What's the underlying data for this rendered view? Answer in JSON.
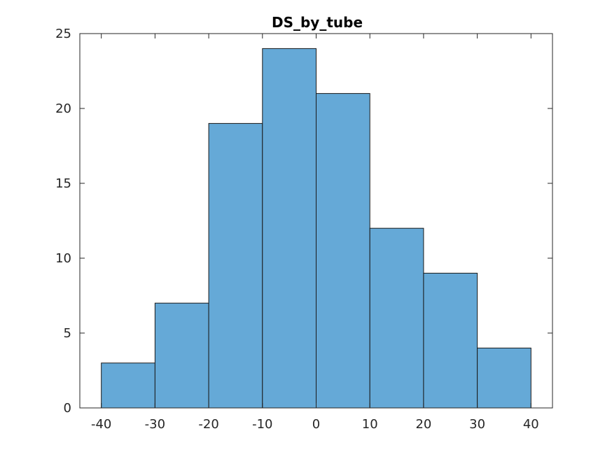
{
  "chart_data": {
    "type": "bar",
    "title": "DS_by_tube",
    "xlabel": "",
    "ylabel": "",
    "bin_edges": [
      -40,
      -30,
      -20,
      -10,
      0,
      10,
      20,
      30,
      40
    ],
    "values": [
      3,
      7,
      19,
      24,
      21,
      12,
      9,
      4
    ],
    "xlim": [
      -44,
      44
    ],
    "ylim": [
      0,
      25
    ],
    "xticks": [
      -40,
      -30,
      -20,
      -10,
      0,
      10,
      20,
      30,
      40
    ],
    "yticks": [
      0,
      5,
      10,
      15,
      20,
      25
    ],
    "xtick_labels": [
      "-40",
      "-30",
      "-20",
      "-10",
      "0",
      "10",
      "20",
      "30",
      "40"
    ],
    "ytick_labels": [
      "0",
      "5",
      "10",
      "15",
      "20",
      "25"
    ],
    "bar_color": "#65a9d7",
    "edge_color": "#1a1a1a",
    "grid": false,
    "legend": "none"
  }
}
